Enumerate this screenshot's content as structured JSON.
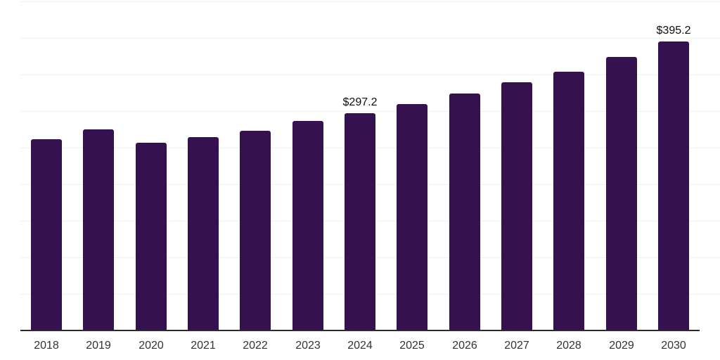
{
  "chart_data": {
    "type": "bar",
    "title": "",
    "xlabel": "",
    "ylabel": "",
    "categories": [
      "2018",
      "2019",
      "2020",
      "2021",
      "2022",
      "2023",
      "2024",
      "2025",
      "2026",
      "2027",
      "2028",
      "2029",
      "2030"
    ],
    "values": [
      261.4,
      274.6,
      256.3,
      264.4,
      273.1,
      286.5,
      297.2,
      309.2,
      323.7,
      339.5,
      354.3,
      374.0,
      395.2
    ],
    "data_labels": [
      {
        "category": "2024",
        "text": "$297.2"
      },
      {
        "category": "2030",
        "text": "$395.2"
      }
    ],
    "ylim": [
      0,
      450
    ],
    "grid_step": 50,
    "grid": true,
    "legend": false,
    "colors": {
      "bar": "#361150",
      "axis_line": "#2b2b2b",
      "gridline": "#f0f0f0",
      "tick_label": "#333333",
      "data_label": "#0d0d0d",
      "background": "#ffffff"
    }
  }
}
